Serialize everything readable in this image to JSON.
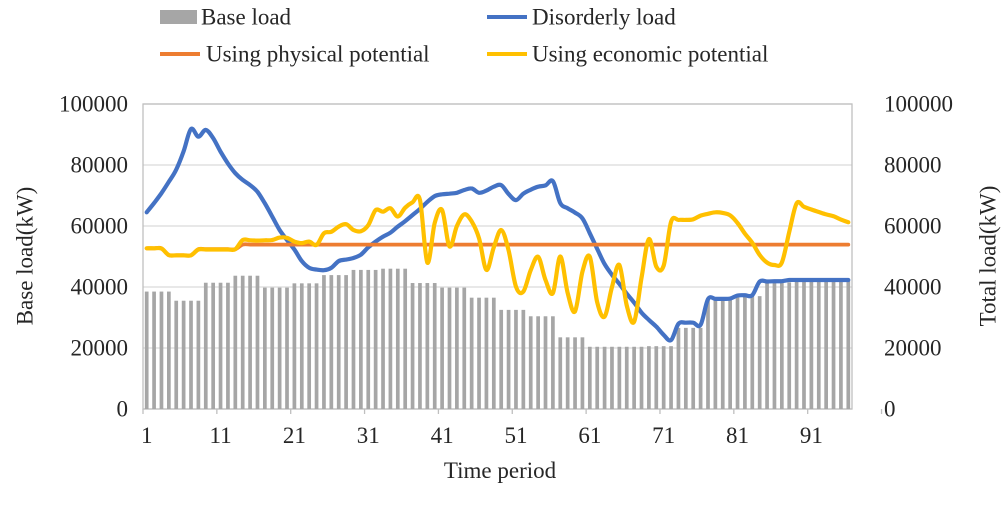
{
  "chart_data": {
    "type": "combo",
    "title": "",
    "xlabel": "Time period",
    "ylabel_left": "Base load(kW)",
    "ylabel_right": "Total load(kW)",
    "n_periods": 96,
    "x_ticks": [
      1,
      11,
      21,
      31,
      41,
      51,
      61,
      71,
      81,
      91
    ],
    "yticks": [
      0,
      20000,
      40000,
      60000,
      80000,
      100000
    ],
    "ytick_labels": [
      "0",
      "20000",
      "40000",
      "60000",
      "80000",
      "100000"
    ],
    "ylim": [
      0,
      100000
    ],
    "grid": "horizontal",
    "legend_position": "top",
    "colors": {
      "base_load": "#A6A6A6",
      "disorderly": "#4472C4",
      "physical": "#ED7D31",
      "economic": "#FFC000",
      "gridline": "#D9D9D9",
      "axis_border": "#BFBFBF",
      "text": "#262626"
    },
    "series": [
      {
        "name": "Base load",
        "type": "bar",
        "color": "#A6A6A6",
        "values": [
          38500,
          38500,
          38500,
          38500,
          35500,
          35500,
          35500,
          35500,
          41400,
          41400,
          41400,
          41400,
          43700,
          43700,
          43700,
          43700,
          39800,
          39800,
          39800,
          39800,
          41200,
          41200,
          41200,
          41200,
          43900,
          43900,
          43900,
          43900,
          45600,
          45600,
          45600,
          45600,
          46000,
          46000,
          46000,
          46000,
          41300,
          41300,
          41300,
          41300,
          39800,
          39800,
          39800,
          39800,
          36500,
          36500,
          36500,
          36500,
          32500,
          32500,
          32500,
          32500,
          30400,
          30400,
          30400,
          30400,
          23500,
          23500,
          23500,
          23500,
          20400,
          20400,
          20400,
          20400,
          20400,
          20400,
          20400,
          20400,
          20600,
          20600,
          20600,
          20600,
          26600,
          26600,
          26600,
          26600,
          35800,
          35800,
          35800,
          35800,
          37000,
          37000,
          37000,
          37000,
          41500,
          41500,
          41500,
          41500,
          42100,
          42100,
          42100,
          42100,
          42100,
          42100,
          42100,
          42100
        ]
      },
      {
        "name": "Disorderly load",
        "type": "line",
        "color": "#4472C4",
        "values": [
          64500,
          67500,
          70800,
          74500,
          78500,
          84500,
          91800,
          89300,
          91500,
          88800,
          84400,
          80500,
          77300,
          75100,
          73400,
          71200,
          67400,
          63100,
          58700,
          55400,
          52300,
          48500,
          46300,
          45700,
          45500,
          46300,
          48500,
          49000,
          49500,
          50600,
          53000,
          54900,
          56500,
          57800,
          59800,
          61600,
          63600,
          65600,
          67900,
          69800,
          70400,
          70600,
          70900,
          71800,
          72300,
          70900,
          71600,
          72900,
          73400,
          70500,
          68500,
          70600,
          71900,
          72900,
          73300,
          74700,
          67500,
          65800,
          64400,
          62500,
          57600,
          52500,
          47500,
          44000,
          41000,
          37800,
          34900,
          31600,
          29200,
          27000,
          24300,
          22600,
          27900,
          28300,
          28300,
          27600,
          36000,
          36100,
          36100,
          36200,
          37200,
          37300,
          37300,
          41800,
          41800,
          41900,
          41900,
          42300,
          42300,
          42300,
          42300,
          42300,
          42300,
          42300,
          42300,
          42300
        ]
      },
      {
        "name": "Using physical potential",
        "type": "line",
        "color": "#ED7D31",
        "values": [
          52700,
          52700,
          52700,
          50400,
          50400,
          50400,
          50400,
          52400,
          52400,
          52400,
          52400,
          52400,
          52400,
          53900,
          53900,
          53900,
          53900,
          53900,
          53900,
          53900,
          53900,
          53900,
          53900,
          53900,
          53900,
          53900,
          53900,
          53900,
          53900,
          53900,
          53900,
          53900,
          53900,
          53900,
          53900,
          53900,
          53900,
          53900,
          53900,
          53900,
          53900,
          53900,
          53900,
          53900,
          53900,
          53900,
          53900,
          53900,
          53900,
          53900,
          53900,
          53900,
          53900,
          53900,
          53900,
          53900,
          53900,
          53900,
          53900,
          53900,
          53900,
          53900,
          53900,
          53900,
          53900,
          53900,
          53900,
          53900,
          53900,
          53900,
          53900,
          53900,
          53900,
          53900,
          53900,
          53900,
          53900,
          53900,
          53900,
          53900,
          53900,
          53900,
          53900,
          53900,
          53900,
          53900,
          53900,
          53900,
          53900,
          53900,
          53900,
          53900,
          53900,
          53900,
          53900,
          53900
        ]
      },
      {
        "name": "Using economic potential",
        "type": "line",
        "color": "#FFC000",
        "values": [
          52700,
          52700,
          52600,
          50500,
          50400,
          50400,
          50400,
          52300,
          52300,
          52300,
          52300,
          52300,
          52400,
          55400,
          55300,
          55200,
          55300,
          55400,
          56200,
          56100,
          54900,
          54400,
          54900,
          53800,
          57600,
          58100,
          59800,
          60600,
          58700,
          58300,
          60300,
          65200,
          64700,
          65800,
          63100,
          66000,
          67800,
          68500,
          48000,
          61000,
          65200,
          53300,
          60000,
          63800,
          61500,
          56000,
          45600,
          53000,
          58700,
          52000,
          40100,
          38500,
          45500,
          49900,
          42300,
          38000,
          50000,
          38000,
          32000,
          45000,
          49900,
          35000,
          30300,
          40000,
          47200,
          34000,
          28600,
          43000,
          55700,
          46700,
          47000,
          61400,
          62000,
          62000,
          62200,
          63400,
          64000,
          64500,
          64300,
          63500,
          61000,
          57500,
          54500,
          50500,
          48000,
          47200,
          48000,
          58000,
          67400,
          66300,
          65400,
          64600,
          63800,
          63200,
          62100,
          61200
        ]
      }
    ]
  }
}
